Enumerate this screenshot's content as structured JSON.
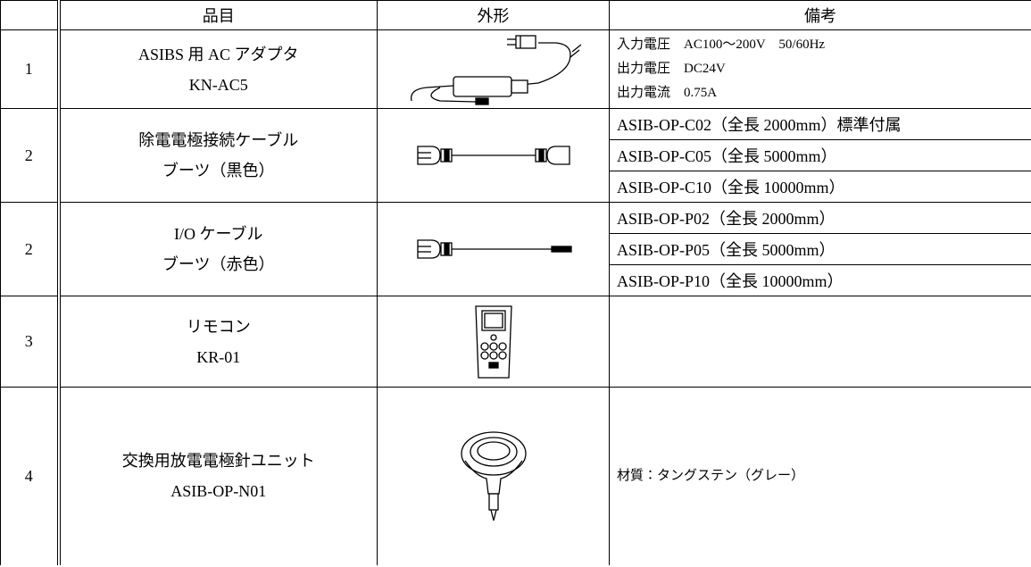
{
  "table": {
    "header": [
      "品目",
      "外形",
      "備考"
    ],
    "rows": [
      {
        "no": "1",
        "item": [
          "ASIBS 用 AC アダプタ",
          "KN-AC5"
        ],
        "remarks": [
          "入力電圧　AC100～200V　50/60Hz",
          "出力電圧　DC24V",
          "出力電流　0.75A"
        ]
      },
      {
        "no": "2",
        "item": [
          "除電電極接続ケーブル",
          "ブーツ（黒色）"
        ],
        "remarks": [
          "ASIB-OP-C02（全長 2000mm）標準付属",
          "ASIB-OP-C05（全長 5000mm）",
          "ASIB-OP-C10（全長 10000mm）"
        ]
      },
      {
        "no": "2",
        "item": [
          "I/O ケーブル",
          "ブーツ（赤色）"
        ],
        "remarks": [
          "ASIB-OP-P02（全長 2000mm）",
          "ASIB-OP-P05（全長 5000mm）",
          "ASIB-OP-P10（全長 10000mm）"
        ]
      },
      {
        "no": "3",
        "item": [
          "リモコン",
          "KR-01"
        ]
      },
      {
        "no": "4",
        "item": [
          "交換用放電電極針ユニット",
          "ASIB-OP-N01"
        ],
        "remarks": [
          "材質：タングステン（グレー）"
        ]
      }
    ]
  }
}
